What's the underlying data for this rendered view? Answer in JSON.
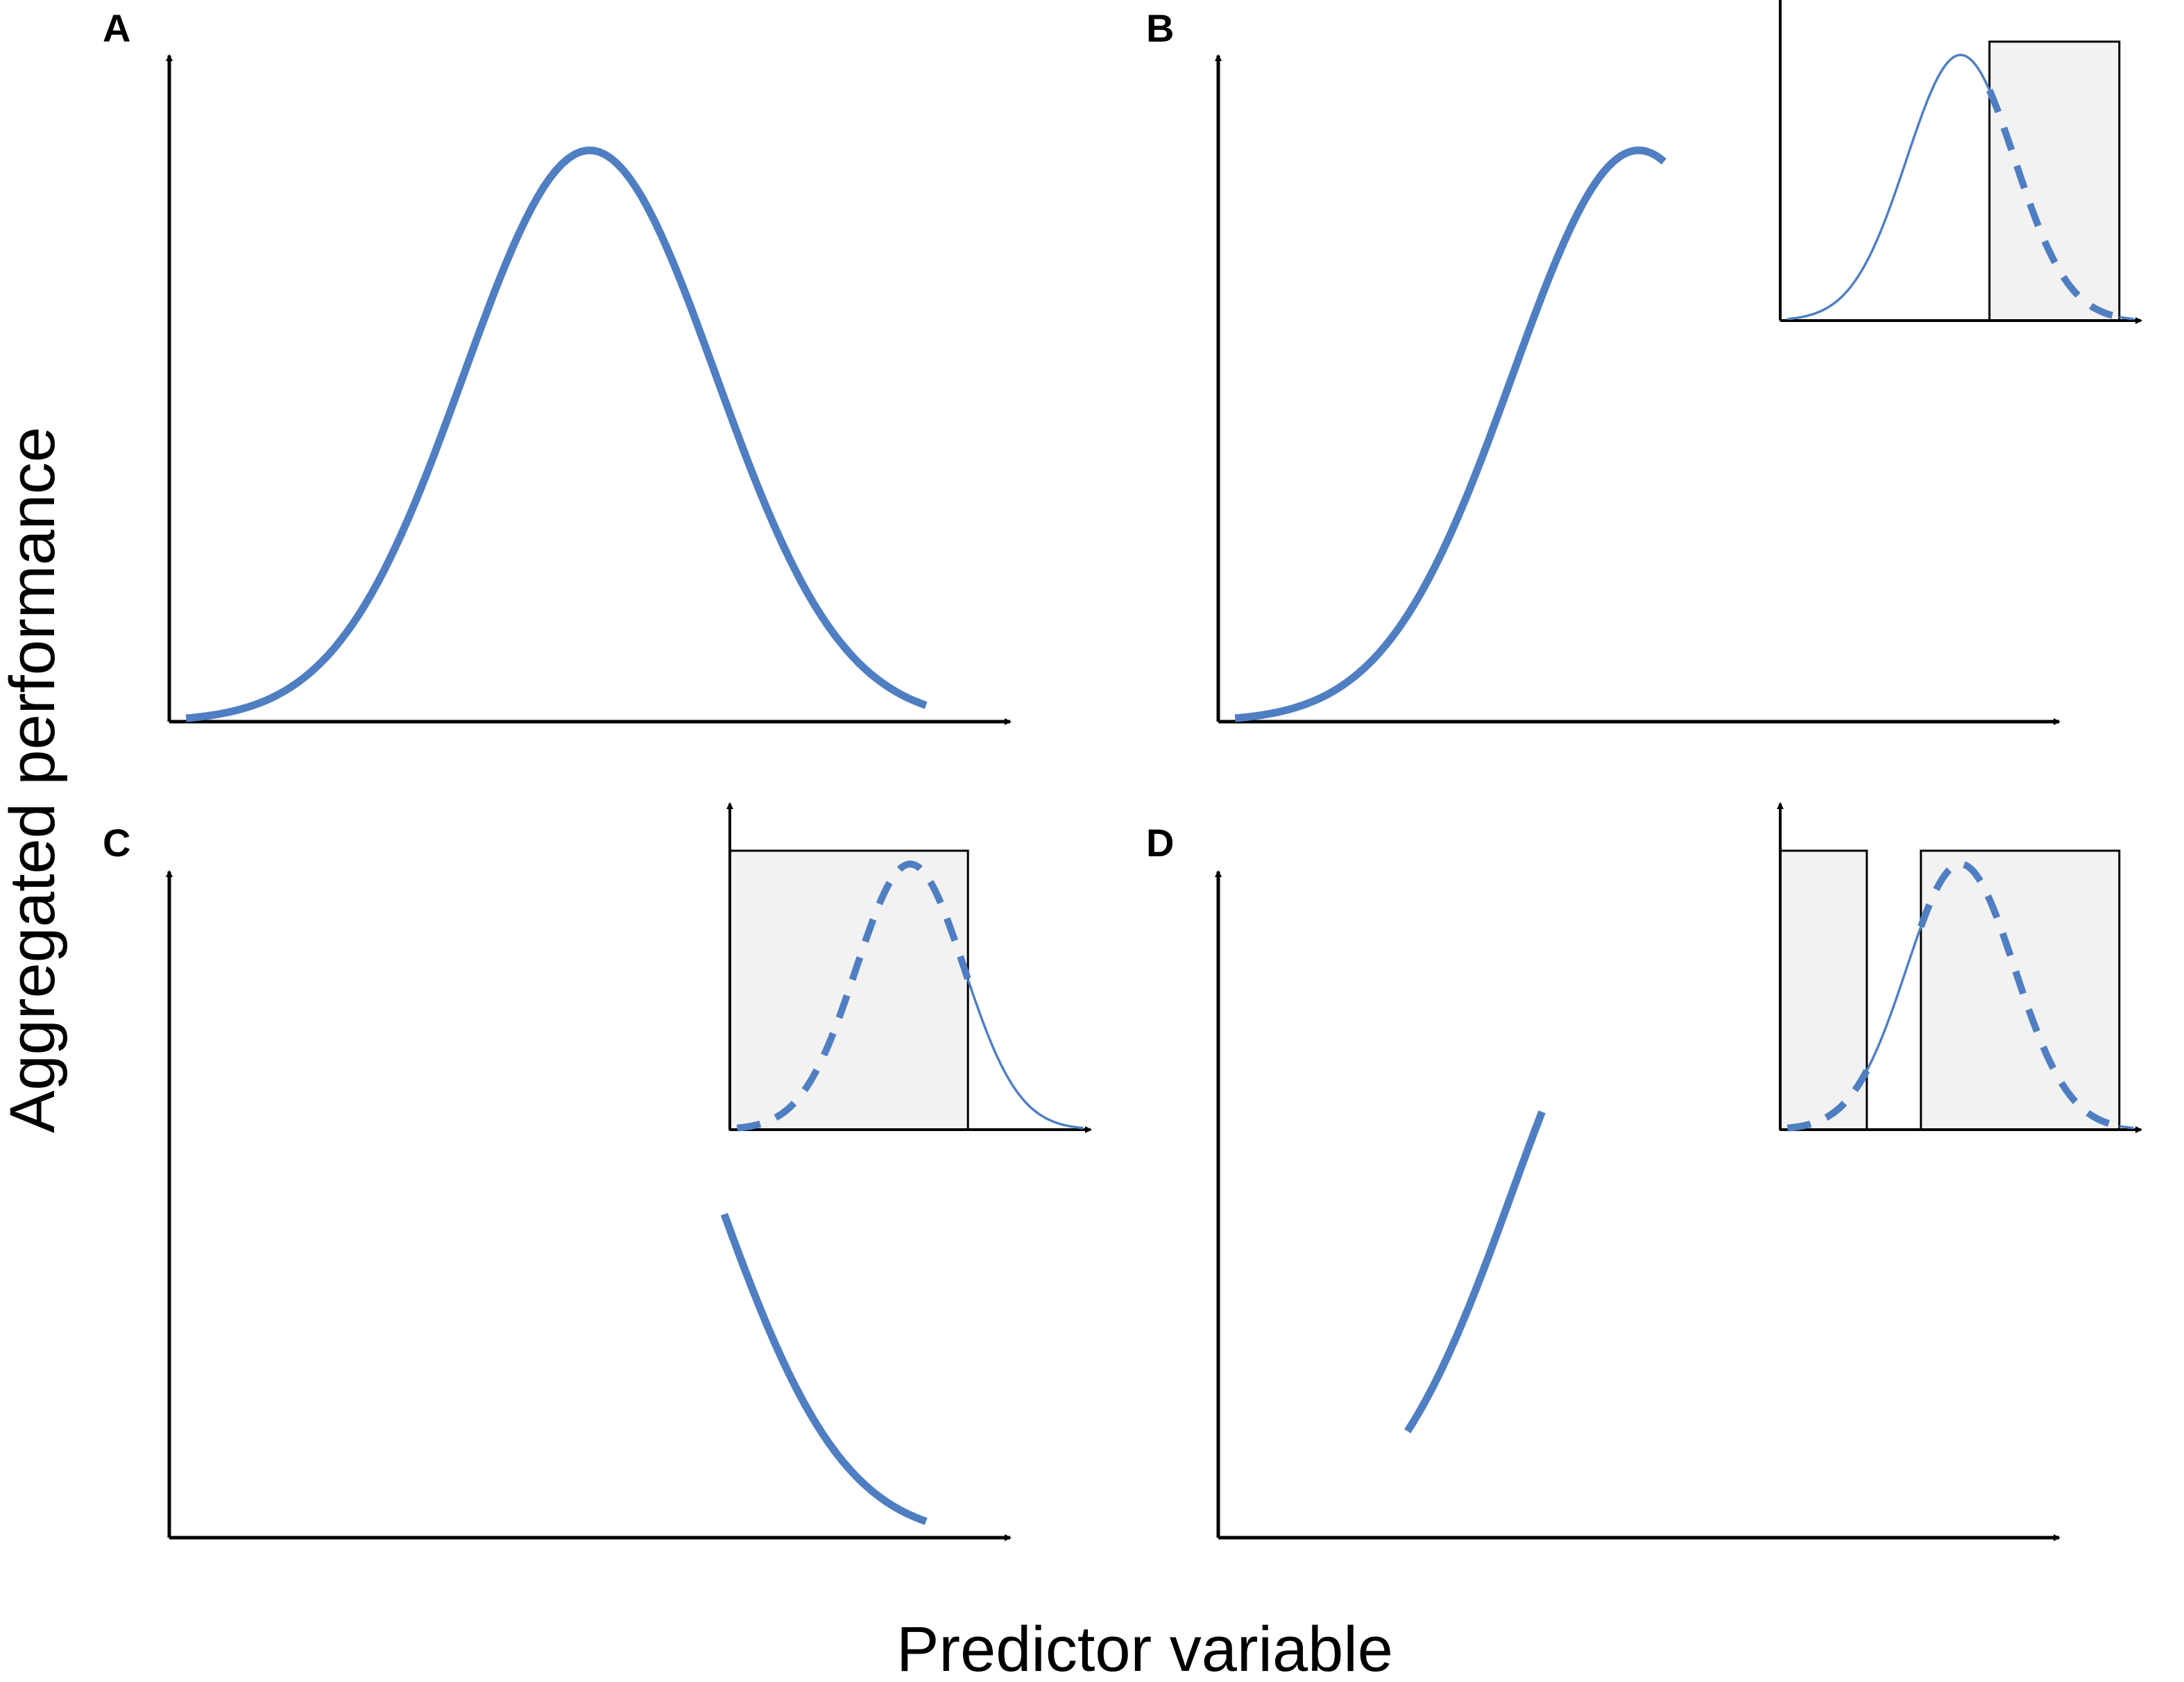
{
  "figure": {
    "ylabel": "Aggregated performance",
    "xlabel": "Predictor variable"
  },
  "colors": {
    "curve": "#4f7fc2",
    "axis": "#000000",
    "shade_fill": "#f2f2f2",
    "shade_stroke": "#000000"
  },
  "chart_data": [
    {
      "panel": "A",
      "type": "line",
      "description_curve": "bell",
      "main": {
        "xlim": [
          0,
          1
        ],
        "ylim": [
          0,
          1
        ],
        "visible_x": [
          0.02,
          0.9
        ]
      },
      "inset": null
    },
    {
      "panel": "B",
      "type": "line",
      "main": {
        "xlim": [
          0,
          1
        ],
        "ylim": [
          0,
          1
        ],
        "visible_x": [
          0.02,
          0.53
        ]
      },
      "inset": {
        "xlim": [
          0,
          1
        ],
        "ylim": [
          0,
          1
        ],
        "shaded": [
          [
            0.58,
            0.94
          ]
        ]
      }
    },
    {
      "panel": "C",
      "type": "line",
      "main": {
        "xlim": [
          0,
          1
        ],
        "ylim": [
          0,
          1
        ],
        "visible_x": [
          0.66,
          0.9
        ]
      },
      "inset": {
        "xlim": [
          0,
          1
        ],
        "ylim": [
          0,
          1
        ],
        "shaded": [
          [
            0.0,
            0.66
          ]
        ]
      }
    },
    {
      "panel": "D",
      "type": "line",
      "main": {
        "xlim": [
          0,
          1
        ],
        "ylim": [
          0,
          1
        ],
        "visible_x": [
          0.225,
          0.385
        ]
      },
      "inset": {
        "xlim": [
          0,
          1
        ],
        "ylim": [
          0,
          1
        ],
        "shaded": [
          [
            0.0,
            0.24
          ],
          [
            0.39,
            0.94
          ]
        ]
      }
    }
  ]
}
